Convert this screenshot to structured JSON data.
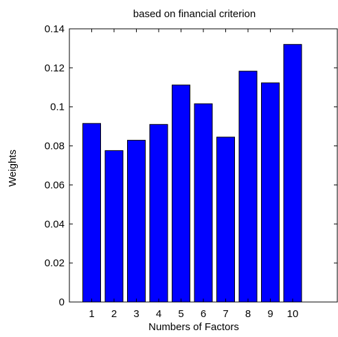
{
  "chart_data": {
    "type": "bar",
    "title": "based on financial criterion",
    "xlabel": "Numbers of Factors",
    "ylabel": "Weights",
    "categories": [
      "1",
      "2",
      "3",
      "4",
      "5",
      "6",
      "7",
      "8",
      "9",
      "10"
    ],
    "values": [
      0.0915,
      0.0776,
      0.0829,
      0.091,
      0.1112,
      0.1016,
      0.0845,
      0.1183,
      0.1123,
      0.132
    ],
    "xlim": [
      0,
      12
    ],
    "ylim": [
      0,
      0.14
    ],
    "yticks": [
      0,
      0.02,
      0.04,
      0.06,
      0.08,
      0.1,
      0.12,
      0.14
    ],
    "ytick_labels": [
      "0",
      "0.02",
      "0.04",
      "0.06",
      "0.08",
      "0.1",
      "0.12",
      "0.14"
    ],
    "grid": false,
    "bar_color": "#0000ff"
  }
}
